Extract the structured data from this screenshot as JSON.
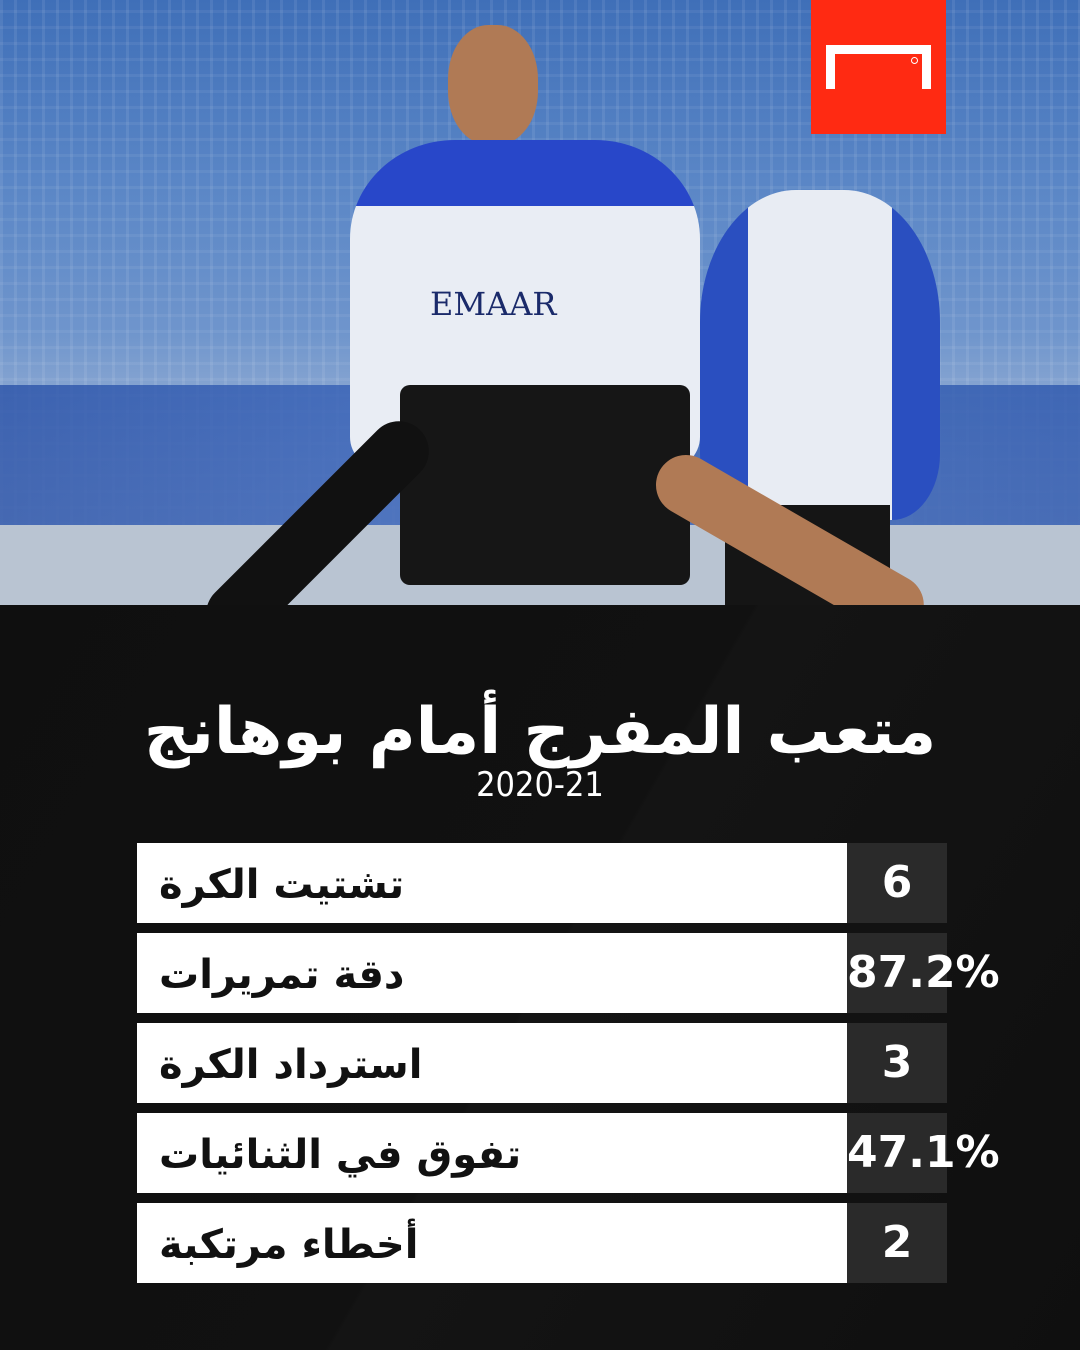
{
  "brand": {
    "logo": "goal-logo",
    "color": "#ff2a12"
  },
  "photo": {
    "jersey_text": "EMAAR"
  },
  "title": "متعب المفرج أمام بوهانج",
  "season": "2020-21",
  "stats": [
    {
      "label": "تشتيت الكرة",
      "value": "6"
    },
    {
      "label": "دقة تمريرات",
      "value": "87.2%"
    },
    {
      "label": "استرداد الكرة",
      "value": "3"
    },
    {
      "label": "تفوق في الثنائيات",
      "value": "47.1%"
    },
    {
      "label": "أخطاء مرتكبة",
      "value": "2"
    }
  ]
}
